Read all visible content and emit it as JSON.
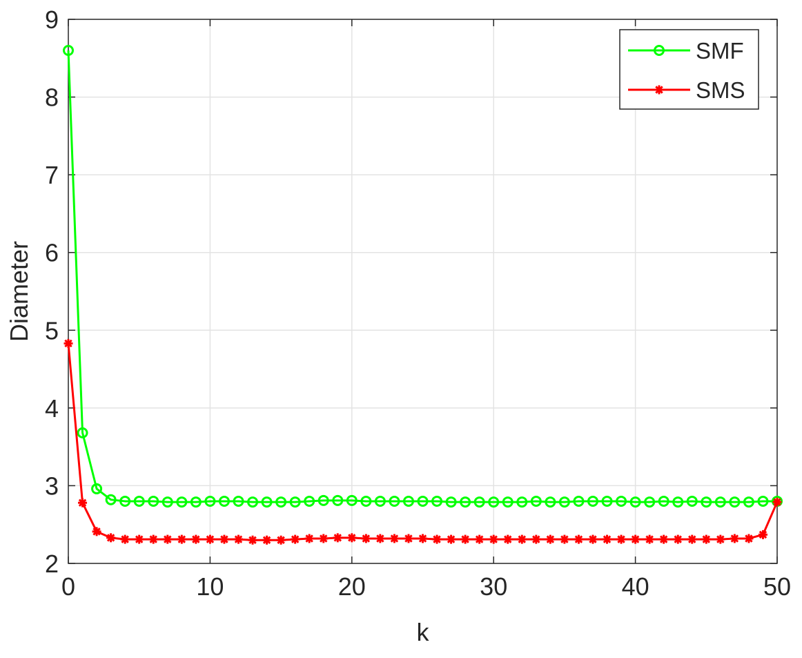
{
  "chart_data": {
    "type": "line",
    "title": "",
    "xlabel": "k",
    "ylabel": "Diameter",
    "xlim": [
      0,
      50
    ],
    "ylim": [
      2,
      9
    ],
    "xticks": [
      0,
      10,
      20,
      30,
      40,
      50
    ],
    "yticks": [
      2,
      3,
      4,
      5,
      6,
      7,
      8,
      9
    ],
    "xtick_labels": [
      "0",
      "10",
      "20",
      "30",
      "40",
      "50"
    ],
    "ytick_labels": [
      "2",
      "3",
      "4",
      "5",
      "6",
      "7",
      "8",
      "9"
    ],
    "grid": true,
    "legend_position": "top-right",
    "x": [
      0,
      1,
      2,
      3,
      4,
      5,
      6,
      7,
      8,
      9,
      10,
      11,
      12,
      13,
      14,
      15,
      16,
      17,
      18,
      19,
      20,
      21,
      22,
      23,
      24,
      25,
      26,
      27,
      28,
      29,
      30,
      31,
      32,
      33,
      34,
      35,
      36,
      37,
      38,
      39,
      40,
      41,
      42,
      43,
      44,
      45,
      46,
      47,
      48,
      49,
      50
    ],
    "series": [
      {
        "name": "SMF",
        "color": "#00ff00",
        "marker": "circle",
        "values": [
          8.6,
          3.68,
          2.96,
          2.82,
          2.8,
          2.8,
          2.8,
          2.79,
          2.79,
          2.79,
          2.8,
          2.8,
          2.8,
          2.79,
          2.79,
          2.79,
          2.79,
          2.8,
          2.81,
          2.81,
          2.81,
          2.8,
          2.8,
          2.8,
          2.8,
          2.8,
          2.8,
          2.79,
          2.79,
          2.79,
          2.79,
          2.79,
          2.79,
          2.8,
          2.79,
          2.79,
          2.8,
          2.8,
          2.8,
          2.8,
          2.79,
          2.79,
          2.8,
          2.79,
          2.8,
          2.79,
          2.79,
          2.79,
          2.79,
          2.8,
          2.8
        ]
      },
      {
        "name": "SMS",
        "color": "#ff0000",
        "marker": "asterisk",
        "values": [
          4.83,
          2.78,
          2.41,
          2.33,
          2.31,
          2.31,
          2.31,
          2.31,
          2.31,
          2.31,
          2.31,
          2.31,
          2.31,
          2.3,
          2.3,
          2.3,
          2.31,
          2.32,
          2.32,
          2.33,
          2.33,
          2.32,
          2.32,
          2.32,
          2.32,
          2.32,
          2.31,
          2.31,
          2.31,
          2.31,
          2.31,
          2.31,
          2.31,
          2.31,
          2.31,
          2.31,
          2.31,
          2.31,
          2.31,
          2.31,
          2.31,
          2.31,
          2.31,
          2.31,
          2.31,
          2.31,
          2.31,
          2.32,
          2.32,
          2.37,
          2.79
        ]
      }
    ]
  }
}
